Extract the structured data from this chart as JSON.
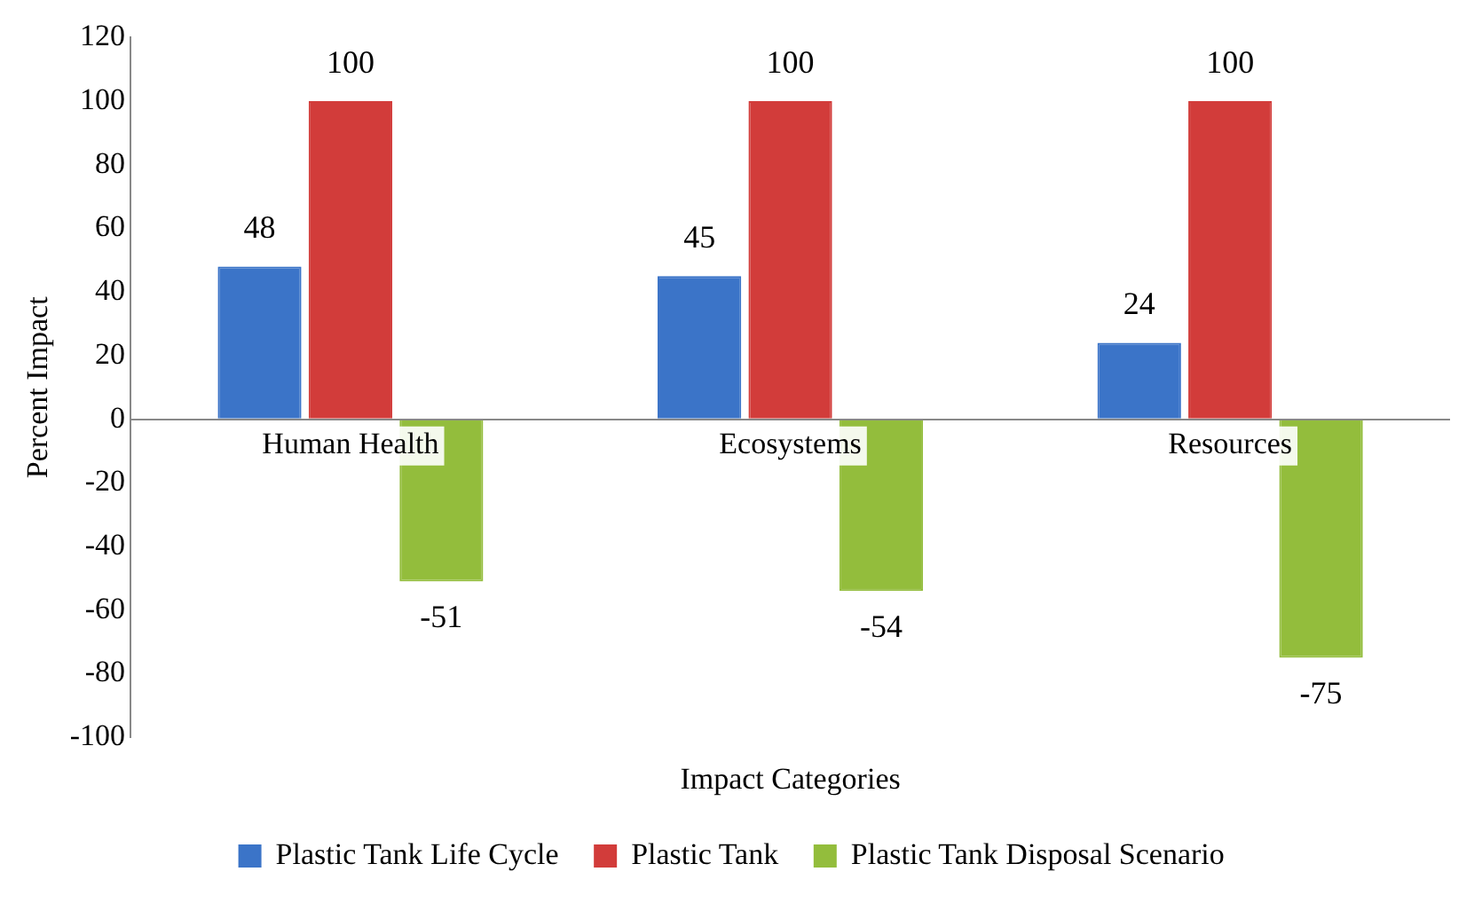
{
  "chart_data": {
    "type": "bar",
    "xlabel": "Impact Categories",
    "ylabel": "Percent Impact",
    "categories": [
      "Human Health",
      "Ecosystems",
      "Resources"
    ],
    "series": [
      {
        "name": "Plastic Tank Life Cycle",
        "color": "#3b74c8",
        "values": [
          48,
          45,
          24
        ]
      },
      {
        "name": "Plastic Tank",
        "color": "#d23c3a",
        "values": [
          100,
          100,
          100
        ]
      },
      {
        "name": "Plastic Tank Disposal Scenario",
        "color": "#93bd3c",
        "values": [
          -51,
          -54,
          -75
        ]
      }
    ],
    "ylim": [
      -100,
      120
    ],
    "yticks": [
      -100,
      -80,
      -60,
      -40,
      -20,
      0,
      20,
      40,
      60,
      80,
      100,
      120
    ],
    "grid": false,
    "legend": "bottom",
    "data_labels": true
  }
}
